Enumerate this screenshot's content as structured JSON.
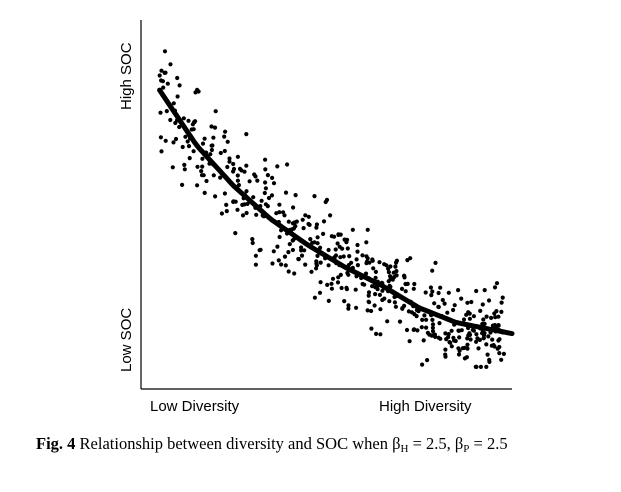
{
  "chart_data": {
    "type": "scatter",
    "xlabel_low": "Low Diversity",
    "xlabel_high": "High Diversity",
    "ylabel_high": "High SOC",
    "ylabel_low": "Low SOC",
    "xlim": [
      0,
      1
    ],
    "ylim": [
      0,
      1
    ],
    "trend": {
      "type": "exponential-decay",
      "x": [
        0.05,
        0.15,
        0.25,
        0.35,
        0.45,
        0.55,
        0.65,
        0.75,
        0.85,
        0.95,
        1.0
      ],
      "y": [
        0.81,
        0.66,
        0.55,
        0.46,
        0.39,
        0.33,
        0.28,
        0.22,
        0.18,
        0.16,
        0.15
      ]
    },
    "points": {
      "count": 520,
      "x_range": [
        0.05,
        0.98
      ],
      "spread_description": "scatter around decreasing trend"
    }
  },
  "caption": {
    "fig_label": "Fig. 4",
    "text": "Relationship between diversity and SOC when β",
    "sub_h": "H",
    "eq_h": " = 2.5,",
    "beta2": "β",
    "sub_p": "P",
    "eq_p": " = 2.5"
  }
}
